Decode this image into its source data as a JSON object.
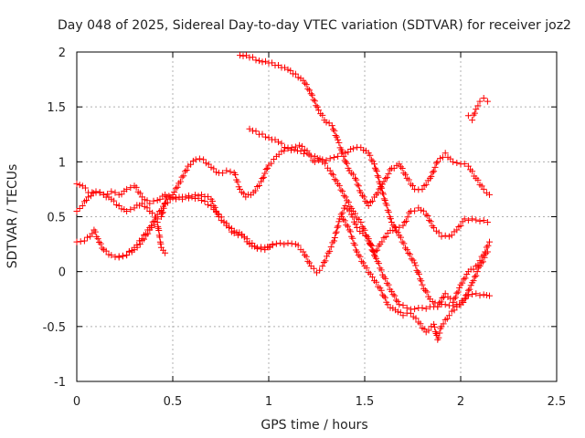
{
  "chart_data": {
    "type": "scatter",
    "title": "Day 048 of 2025, Sidereal Day-to-day VTEC variation (SDTVAR) for receiver joz2",
    "xlabel": "GPS time / hours",
    "ylabel": "SDTVAR / TECUs",
    "xlim": [
      0,
      2.5
    ],
    "ylim": [
      -1,
      2
    ],
    "x_ticks": [
      0,
      0.5,
      1,
      1.5,
      2,
      2.5
    ],
    "x_tick_labels": [
      "0",
      "0.5",
      "1",
      "1.5",
      "2",
      "2.5"
    ],
    "y_ticks": [
      -1,
      -0.5,
      0,
      0.5,
      1,
      1.5,
      2
    ],
    "y_tick_labels": [
      "-1",
      "-0.5",
      "0",
      "0.5",
      "1",
      "1.5",
      "2"
    ],
    "grid": true,
    "marker": "+",
    "color": "#ff0000",
    "series": [
      {
        "name": "series-1",
        "points": [
          [
            0,
            0.27
          ],
          [
            0.04,
            0.28
          ],
          [
            0.07,
            0.32
          ],
          [
            0.09,
            0.38
          ],
          [
            0.11,
            0.3
          ],
          [
            0.14,
            0.2
          ],
          [
            0.18,
            0.15
          ],
          [
            0.22,
            0.14
          ],
          [
            0.26,
            0.15
          ],
          [
            0.3,
            0.22
          ],
          [
            0.34,
            0.3
          ],
          [
            0.38,
            0.4
          ],
          [
            0.42,
            0.52
          ],
          [
            0.46,
            0.62
          ],
          [
            0.5,
            0.68
          ],
          [
            0.55,
            0.66
          ],
          [
            0.6,
            0.68
          ],
          [
            0.65,
            0.65
          ],
          [
            0.7,
            0.6
          ],
          [
            0.74,
            0.52
          ],
          [
            0.78,
            0.44
          ],
          [
            0.82,
            0.37
          ],
          [
            0.86,
            0.33
          ],
          [
            0.9,
            0.25
          ],
          [
            0.94,
            0.21
          ],
          [
            0.98,
            0.22
          ],
          [
            1.02,
            0.24
          ],
          [
            1.06,
            0.26
          ],
          [
            1.1,
            0.26
          ],
          [
            1.14,
            0.25
          ],
          [
            1.18,
            0.18
          ],
          [
            1.22,
            0.05
          ],
          [
            1.25,
            -0.01
          ],
          [
            1.28,
            0.05
          ],
          [
            1.31,
            0.17
          ],
          [
            1.34,
            0.28
          ],
          [
            1.37,
            0.48
          ],
          [
            1.4,
            0.6
          ],
          [
            1.43,
            0.52
          ],
          [
            1.46,
            0.4
          ],
          [
            1.49,
            0.35
          ],
          [
            1.52,
            0.3
          ],
          [
            1.56,
            0.12
          ],
          [
            1.6,
            -0.05
          ],
          [
            1.64,
            -0.18
          ],
          [
            1.68,
            -0.3
          ],
          [
            1.72,
            -0.33
          ],
          [
            1.76,
            -0.34
          ],
          [
            1.8,
            -0.33
          ],
          [
            1.84,
            -0.32
          ],
          [
            1.88,
            -0.32
          ],
          [
            1.92,
            -0.3
          ],
          [
            1.96,
            -0.31
          ],
          [
            2.0,
            -0.3
          ],
          [
            2.04,
            -0.22
          ],
          [
            2.08,
            -0.2
          ],
          [
            2.12,
            -0.21
          ],
          [
            2.15,
            -0.22
          ]
        ]
      },
      {
        "name": "series-2",
        "points": [
          [
            0,
            0.8
          ],
          [
            0.03,
            0.78
          ],
          [
            0.06,
            0.72
          ],
          [
            0.1,
            0.73
          ],
          [
            0.14,
            0.7
          ],
          [
            0.18,
            0.66
          ],
          [
            0.22,
            0.6
          ],
          [
            0.26,
            0.55
          ],
          [
            0.3,
            0.58
          ],
          [
            0.34,
            0.62
          ],
          [
            0.38,
            0.55
          ],
          [
            0.42,
            0.48
          ],
          [
            0.44,
            0.5
          ],
          [
            0.47,
            0.68
          ],
          [
            0.5,
            0.7
          ],
          [
            0.54,
            0.82
          ],
          [
            0.58,
            0.96
          ],
          [
            0.62,
            1.02
          ],
          [
            0.66,
            1.02
          ],
          [
            0.7,
            0.95
          ],
          [
            0.74,
            0.9
          ],
          [
            0.78,
            0.92
          ],
          [
            0.82,
            0.9
          ],
          [
            0.85,
            0.75
          ],
          [
            0.88,
            0.68
          ],
          [
            0.92,
            0.72
          ],
          [
            0.96,
            0.82
          ],
          [
            1.0,
            0.97
          ],
          [
            1.04,
            1.05
          ],
          [
            1.08,
            1.1
          ],
          [
            1.12,
            1.13
          ],
          [
            1.16,
            1.15
          ],
          [
            1.2,
            1.1
          ],
          [
            1.24,
            1.0
          ],
          [
            1.28,
            1.02
          ],
          [
            1.32,
            1.03
          ],
          [
            1.36,
            1.05
          ],
          [
            1.4,
            1.08
          ],
          [
            1.44,
            1.12
          ],
          [
            1.48,
            1.13
          ],
          [
            1.52,
            1.08
          ],
          [
            1.55,
            0.98
          ],
          [
            1.58,
            0.8
          ],
          [
            1.61,
            0.62
          ],
          [
            1.64,
            0.45
          ],
          [
            1.68,
            0.33
          ],
          [
            1.72,
            0.2
          ],
          [
            1.76,
            0.08
          ],
          [
            1.8,
            -0.12
          ],
          [
            1.84,
            -0.25
          ],
          [
            1.88,
            -0.32
          ],
          [
            1.92,
            -0.2
          ],
          [
            1.96,
            -0.28
          ],
          [
            2.0,
            -0.12
          ],
          [
            2.04,
            0.0
          ],
          [
            2.08,
            0.05
          ],
          [
            2.12,
            0.15
          ],
          [
            2.15,
            0.27
          ]
        ]
      },
      {
        "name": "series-3",
        "points": [
          [
            0,
            0.55
          ],
          [
            0.03,
            0.6
          ],
          [
            0.06,
            0.68
          ],
          [
            0.1,
            0.72
          ],
          [
            0.14,
            0.7
          ],
          [
            0.18,
            0.73
          ],
          [
            0.22,
            0.7
          ],
          [
            0.26,
            0.75
          ],
          [
            0.3,
            0.78
          ],
          [
            0.34,
            0.68
          ],
          [
            0.38,
            0.62
          ],
          [
            0.42,
            0.65
          ],
          [
            0.46,
            0.7
          ],
          [
            0.5,
            0.67
          ],
          [
            0.55,
            0.68
          ],
          [
            0.6,
            0.68
          ],
          [
            0.65,
            0.7
          ],
          [
            0.7,
            0.66
          ],
          [
            0.74,
            0.5
          ],
          [
            0.78,
            0.42
          ],
          [
            0.82,
            0.35
          ],
          [
            0.86,
            0.34
          ],
          [
            0.9,
            0.26
          ],
          [
            0.94,
            0.22
          ],
          [
            0.98,
            0.2
          ],
          [
            1.02,
            0.25
          ]
        ]
      },
      {
        "name": "series-4",
        "points": [
          [
            0.85,
            1.97
          ],
          [
            0.9,
            1.95
          ],
          [
            0.95,
            1.92
          ],
          [
            1.0,
            1.9
          ],
          [
            1.05,
            1.88
          ],
          [
            1.1,
            1.84
          ],
          [
            1.14,
            1.8
          ],
          [
            1.18,
            1.74
          ],
          [
            1.22,
            1.62
          ],
          [
            1.26,
            1.47
          ],
          [
            1.3,
            1.36
          ],
          [
            1.33,
            1.33
          ],
          [
            1.36,
            1.2
          ],
          [
            1.39,
            1.05
          ],
          [
            1.42,
            0.92
          ],
          [
            1.45,
            0.85
          ],
          [
            1.48,
            0.72
          ],
          [
            1.52,
            0.6
          ],
          [
            1.56,
            0.7
          ],
          [
            1.6,
            0.82
          ],
          [
            1.64,
            0.94
          ],
          [
            1.68,
            0.98
          ],
          [
            1.72,
            0.85
          ],
          [
            1.76,
            0.75
          ],
          [
            1.8,
            0.75
          ],
          [
            1.84,
            0.85
          ],
          [
            1.88,
            1.0
          ],
          [
            1.92,
            1.08
          ],
          [
            1.96,
            1.0
          ],
          [
            2.0,
            0.98
          ],
          [
            2.04,
            0.96
          ],
          [
            2.08,
            0.85
          ],
          [
            2.12,
            0.75
          ],
          [
            2.15,
            0.7
          ]
        ]
      },
      {
        "name": "series-5",
        "points": [
          [
            0.9,
            1.3
          ],
          [
            0.95,
            1.25
          ],
          [
            1.0,
            1.22
          ],
          [
            1.05,
            1.18
          ],
          [
            1.1,
            1.12
          ],
          [
            1.15,
            1.1
          ],
          [
            1.2,
            1.08
          ],
          [
            1.24,
            1.05
          ],
          [
            1.28,
            1.0
          ],
          [
            1.32,
            0.92
          ],
          [
            1.36,
            0.8
          ],
          [
            1.4,
            0.68
          ],
          [
            1.44,
            0.55
          ],
          [
            1.48,
            0.45
          ],
          [
            1.52,
            0.28
          ],
          [
            1.55,
            0.15
          ],
          [
            1.58,
            0.25
          ],
          [
            1.62,
            0.35
          ],
          [
            1.66,
            0.4
          ],
          [
            1.7,
            0.42
          ],
          [
            1.74,
            0.55
          ],
          [
            1.78,
            0.58
          ],
          [
            1.82,
            0.52
          ],
          [
            1.86,
            0.4
          ],
          [
            1.9,
            0.32
          ],
          [
            1.94,
            0.32
          ],
          [
            1.98,
            0.38
          ],
          [
            2.02,
            0.48
          ],
          [
            2.06,
            0.48
          ],
          [
            2.1,
            0.46
          ],
          [
            2.14,
            0.45
          ]
        ]
      },
      {
        "name": "series-6",
        "points": [
          [
            1.38,
            0.5
          ],
          [
            1.42,
            0.38
          ],
          [
            1.46,
            0.18
          ],
          [
            1.5,
            0.05
          ],
          [
            1.54,
            -0.05
          ],
          [
            1.58,
            -0.15
          ],
          [
            1.62,
            -0.3
          ],
          [
            1.66,
            -0.35
          ],
          [
            1.7,
            -0.4
          ],
          [
            1.74,
            -0.38
          ],
          [
            1.78,
            -0.46
          ],
          [
            1.82,
            -0.55
          ],
          [
            1.86,
            -0.48
          ],
          [
            1.88,
            -0.62
          ],
          [
            1.9,
            -0.5
          ],
          [
            1.94,
            -0.4
          ],
          [
            1.98,
            -0.32
          ],
          [
            2.02,
            -0.25
          ],
          [
            2.06,
            -0.1
          ],
          [
            2.1,
            0.05
          ],
          [
            2.14,
            0.18
          ]
        ]
      },
      {
        "name": "series-7",
        "points": [
          [
            2.04,
            1.42
          ],
          [
            2.06,
            1.38
          ],
          [
            2.08,
            1.48
          ],
          [
            2.1,
            1.55
          ],
          [
            2.12,
            1.58
          ],
          [
            2.14,
            1.55
          ]
        ]
      },
      {
        "name": "series-8",
        "points": [
          [
            0.22,
            0.13
          ],
          [
            0.26,
            0.15
          ],
          [
            0.3,
            0.2
          ],
          [
            0.33,
            0.25
          ],
          [
            0.36,
            0.33
          ],
          [
            0.39,
            0.4
          ],
          [
            0.42,
            0.45
          ],
          [
            0.44,
            0.22
          ],
          [
            0.46,
            0.17
          ]
        ]
      }
    ]
  }
}
